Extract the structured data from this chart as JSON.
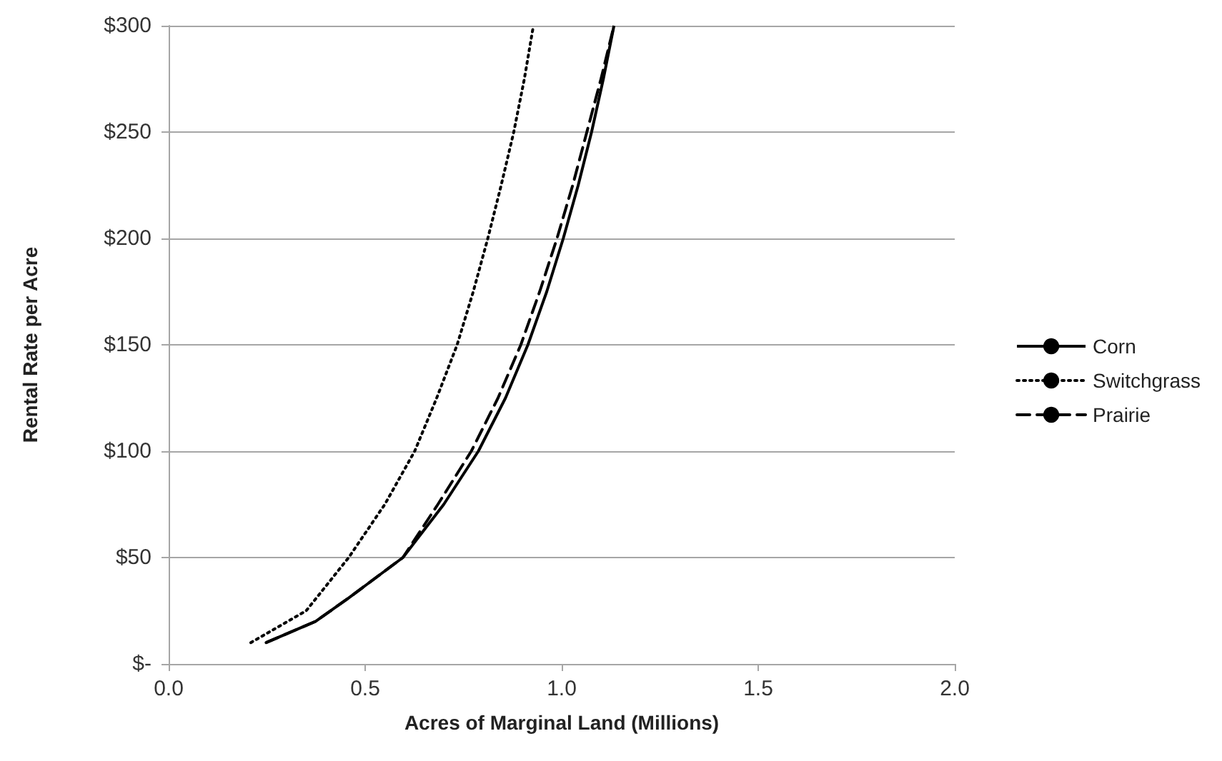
{
  "chart_data": {
    "type": "line",
    "xlabel": "Acres of Marginal Land (Millions)",
    "ylabel": "Rental Rate per Acre",
    "xlim": [
      0,
      2
    ],
    "xticks": [
      {
        "value": 0,
        "label": "0.0"
      },
      {
        "value": 0.5,
        "label": "0.5"
      },
      {
        "value": 1,
        "label": "1.0"
      },
      {
        "value": 1.5,
        "label": "1.5"
      },
      {
        "value": 2,
        "label": "2.0"
      }
    ],
    "ylim": [
      0,
      300
    ],
    "yticks": [
      {
        "value": 0,
        "label": "$-"
      },
      {
        "value": 50,
        "label": "$50"
      },
      {
        "value": 100,
        "label": "$100"
      },
      {
        "value": 150,
        "label": "$150"
      },
      {
        "value": 200,
        "label": "$200"
      },
      {
        "value": 250,
        "label": "$250"
      },
      {
        "value": 300,
        "label": "$300"
      }
    ],
    "grid": "y",
    "legend": "right",
    "marker": "none",
    "series": [
      {
        "name": "Corn",
        "color": "#000000",
        "line_style": "solid",
        "x": [
          0.248,
          0.374,
          0.458,
          0.596,
          0.7,
          0.788,
          0.857,
          0.914,
          0.962,
          1.004,
          1.042,
          1.076,
          1.106,
          1.133
        ],
        "values": [
          10,
          20,
          31,
          50,
          75,
          100,
          125,
          150,
          175,
          200,
          225,
          250,
          275,
          300
        ]
      },
      {
        "name": "Switchgrass",
        "color": "#000000",
        "line_style": "dotted",
        "x": [
          0.209,
          0.35,
          0.458,
          0.55,
          0.626,
          0.682,
          0.734,
          0.775,
          0.812,
          0.846,
          0.878,
          0.905,
          0.928
        ],
        "values": [
          10,
          25,
          50,
          75,
          100,
          125,
          150,
          175,
          200,
          225,
          250,
          275,
          300
        ]
      },
      {
        "name": "Prairie",
        "color": "#000000",
        "line_style": "dashed",
        "x": [
          0.248,
          0.374,
          0.458,
          0.596,
          0.685,
          0.77,
          0.838,
          0.896,
          0.944,
          0.988,
          1.028,
          1.064,
          1.1,
          1.133
        ],
        "values": [
          10,
          20,
          31,
          50,
          75,
          100,
          125,
          150,
          175,
          200,
          225,
          250,
          275,
          300
        ]
      }
    ]
  }
}
